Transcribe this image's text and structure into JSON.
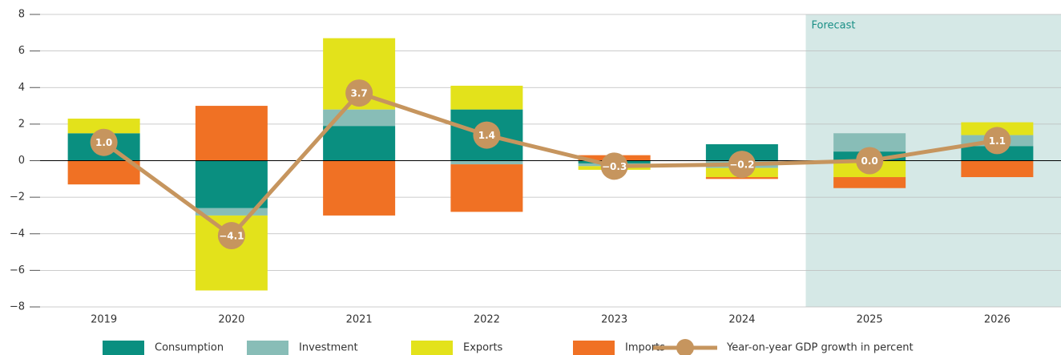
{
  "chart_data": {
    "type": "bar",
    "stacked": true,
    "categories": [
      "2019",
      "2020",
      "2021",
      "2022",
      "2023",
      "2024",
      "2025",
      "2026"
    ],
    "series": [
      {
        "name": "Consumption",
        "color": "#0a8f80",
        "values": [
          1.5,
          -2.6,
          1.9,
          2.8,
          -0.15,
          0.9,
          0.5,
          0.8
        ]
      },
      {
        "name": "Investment",
        "color": "#88bdb7",
        "values": [
          0,
          -0.4,
          0.9,
          -0.2,
          -0.15,
          -0.4,
          1.0,
          0.6
        ]
      },
      {
        "name": "Exports",
        "color": "#e3e21b",
        "values": [
          0.8,
          -4.1,
          3.9,
          1.3,
          -0.2,
          -0.5,
          -0.9,
          0.7
        ]
      },
      {
        "name": "Imports",
        "color": "#f07124",
        "values": [
          -1.3,
          3.0,
          -3.0,
          -2.6,
          0.3,
          -0.1,
          -0.6,
          -0.9
        ]
      }
    ],
    "line": {
      "name": "Year-on-year GDP growth in percent",
      "color": "#c6955e",
      "values": [
        1.0,
        -4.1,
        3.7,
        1.4,
        -0.3,
        -0.2,
        0.0,
        1.1
      ],
      "value_labels": [
        "1.0",
        "−4.1",
        "3.7",
        "1.4",
        "−0.3",
        "−0.2",
        "0.0",
        "1.1"
      ]
    },
    "annotations": [
      {
        "text": "Forecast",
        "from_category": 6,
        "color": "#d5e8e6"
      }
    ],
    "ylim": [
      -8,
      8
    ],
    "yticks": [
      {
        "value": -8,
        "label": "−8"
      },
      {
        "value": -6,
        "label": "−6"
      },
      {
        "value": -4,
        "label": "−4"
      },
      {
        "value": -2,
        "label": "−2"
      },
      0,
      2,
      4,
      6,
      8
    ],
    "grid": true,
    "legend": "bottom"
  }
}
